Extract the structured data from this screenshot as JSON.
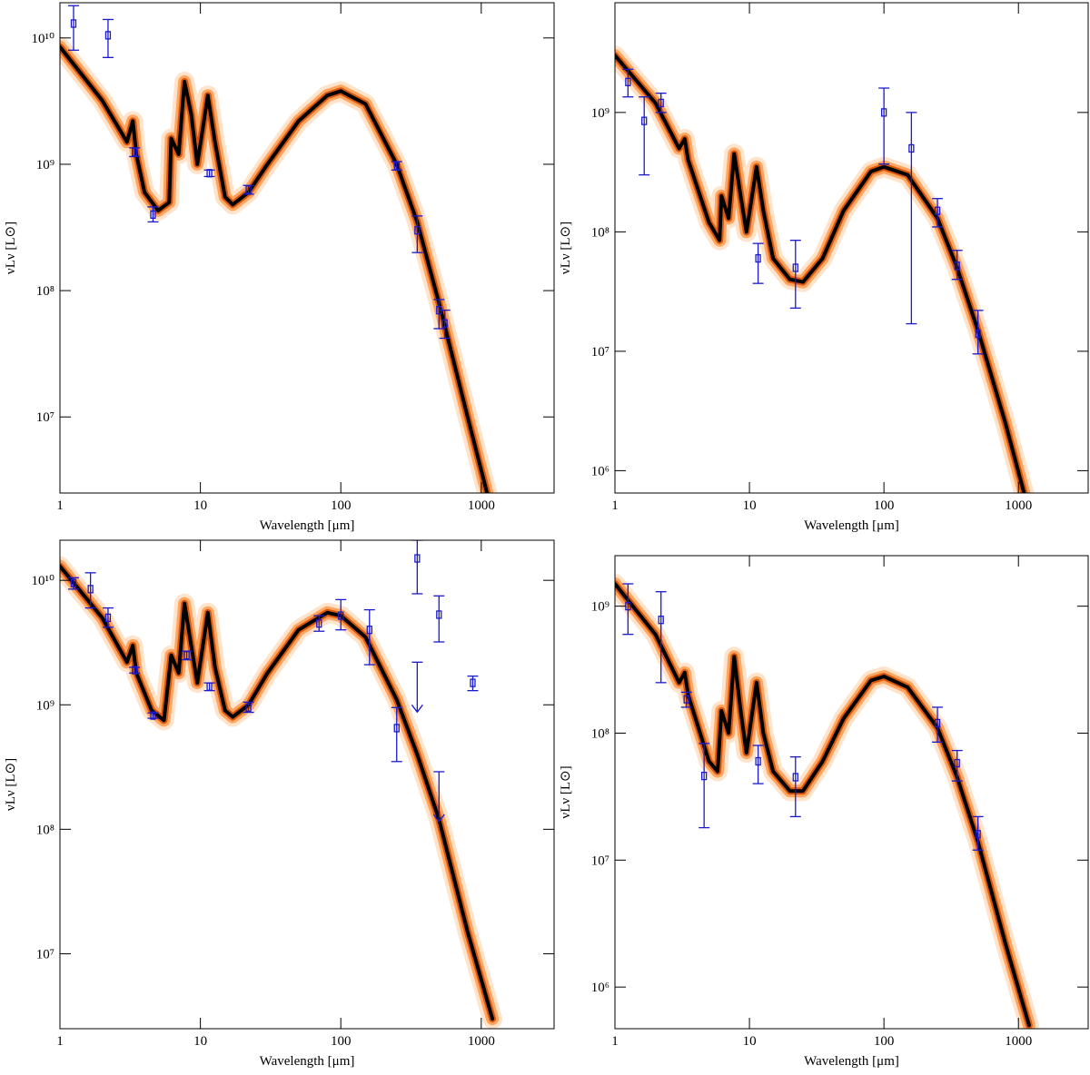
{
  "chart_data": [
    {
      "type": "line",
      "xlabel": "Wavelength [μm]",
      "ylabel": "νLν [L⊙]",
      "xscale": "log",
      "yscale": "log",
      "xlim": [
        1,
        3300
      ],
      "ylim": [
        2500000,
        19000000000
      ],
      "xticks": [
        1,
        10,
        100,
        1000
      ],
      "yticks": [
        {
          "value": 10000000,
          "label": "10⁷"
        },
        {
          "value": 100000000,
          "label": "10⁸"
        },
        {
          "value": 1000000000,
          "label": "10⁹"
        },
        {
          "value": 10000000000,
          "label": "10¹⁰"
        }
      ],
      "x": [
        1,
        2,
        3,
        3.3,
        3.5,
        4,
        5,
        6,
        6.2,
        7,
        7.7,
        8.6,
        9.5,
        11.3,
        12.7,
        15,
        17,
        22,
        30,
        50,
        80,
        100,
        150,
        250,
        350,
        500,
        800,
        1100
      ],
      "values": [
        8500000000,
        3200000000,
        1500000000,
        2200000000,
        1200000000,
        600000000,
        430000000,
        500000000,
        1600000000,
        1200000000,
        4500000000,
        2500000000,
        1000000000,
        3500000000,
        1500000000,
        550000000,
        480000000,
        600000000,
        1000000000,
        2200000000,
        3500000000,
        3800000000,
        3000000000,
        1000000000,
        350000000,
        80000000,
        10000000,
        2500000
      ],
      "color": "#d24a00",
      "points": {
        "color": "#1a1acc",
        "x": [
          1.25,
          2.2,
          3.4,
          4.6,
          11.6,
          22,
          250,
          350,
          500,
          550
        ],
        "values": [
          13000000000,
          10500000000,
          1250000000,
          400000000,
          850000000,
          630000000,
          970000000,
          300000000,
          70000000,
          55000000
        ],
        "low": [
          8000000000,
          7000000000,
          1150000000,
          350000000,
          800000000,
          580000000,
          900000000,
          200000000,
          50000000,
          42000000
        ],
        "high": [
          18000000000,
          14000000000,
          1350000000,
          460000000,
          900000000,
          680000000,
          1050000000,
          390000000,
          85000000,
          70000000
        ]
      }
    },
    {
      "type": "line",
      "xlabel": "Wavelength [μm]",
      "ylabel": "νLν [L⊙]",
      "xscale": "log",
      "yscale": "log",
      "xlim": [
        1,
        3300
      ],
      "ylim": [
        650000,
        8300000000
      ],
      "xticks": [
        1,
        10,
        100,
        1000
      ],
      "yticks": [
        {
          "value": 1000000,
          "label": "10⁶"
        },
        {
          "value": 10000000,
          "label": "10⁷"
        },
        {
          "value": 100000000,
          "label": "10⁸"
        },
        {
          "value": 1000000000,
          "label": "10⁹"
        }
      ],
      "x": [
        1,
        2,
        3,
        3.3,
        3.5,
        5,
        6,
        6.2,
        7,
        7.7,
        8.6,
        9.5,
        11.3,
        12.7,
        15,
        20,
        25,
        35,
        50,
        80,
        100,
        150,
        250,
        350,
        500,
        800,
        1100
      ],
      "values": [
        3000000000,
        1200000000,
        500000000,
        600000000,
        400000000,
        120000000,
        85000000,
        200000000,
        130000000,
        450000000,
        200000000,
        100000000,
        350000000,
        150000000,
        60000000,
        40000000,
        38000000,
        60000000,
        150000000,
        320000000,
        350000000,
        300000000,
        130000000,
        50000000,
        15000000,
        2500000,
        650000
      ],
      "color": "#d24a00",
      "points": {
        "color": "#1a1acc",
        "x": [
          1.25,
          1.65,
          2.2,
          11.6,
          22,
          100,
          160,
          250,
          350,
          500
        ],
        "values": [
          1800000000,
          850000000,
          1200000000,
          60000000,
          50000000,
          1000000000,
          500000000,
          150000000,
          52000000,
          14000000
        ],
        "low": [
          1350000000,
          300000000,
          1000000000,
          37000000,
          23000000,
          370000000,
          17000000,
          110000000,
          40000000,
          9500000
        ],
        "high": [
          2300000000,
          1350000000,
          1450000000,
          80000000,
          85000000,
          1600000000,
          1000000000,
          190000000,
          70000000,
          22000000
        ]
      }
    },
    {
      "type": "line",
      "xlabel": "Wavelength [μm]",
      "ylabel": "νLν [L⊙]",
      "xscale": "log",
      "yscale": "log",
      "xlim": [
        1,
        3300
      ],
      "ylim": [
        2500000,
        21000000000
      ],
      "xticks": [
        1,
        10,
        100,
        1000
      ],
      "yticks": [
        {
          "value": 10000000,
          "label": "10⁷"
        },
        {
          "value": 100000000,
          "label": "10⁸"
        },
        {
          "value": 1000000000,
          "label": "10⁹"
        },
        {
          "value": 10000000000,
          "label": "10¹⁰"
        }
      ],
      "x": [
        1,
        2,
        3,
        3.3,
        3.5,
        4.5,
        5.5,
        6.2,
        7,
        7.7,
        8.6,
        9.5,
        11.3,
        12.7,
        15,
        17,
        22,
        30,
        50,
        80,
        100,
        150,
        250,
        350,
        500,
        800,
        1200
      ],
      "values": [
        13000000000,
        5000000000,
        2200000000,
        3000000000,
        1800000000,
        900000000,
        750000000,
        2500000000,
        1800000000,
        6500000000,
        3000000000,
        1500000000,
        5500000000,
        2000000000,
        900000000,
        800000000,
        1000000000,
        1800000000,
        4000000000,
        5500000000,
        5200000000,
        3500000000,
        1100000000,
        400000000,
        120000000,
        15000000,
        3000000
      ],
      "color": "#d24a00",
      "points": {
        "color": "#1a1acc",
        "x": [
          1.25,
          1.65,
          2.2,
          3.4,
          4.6,
          8,
          11.6,
          22,
          70,
          100,
          160,
          250,
          350,
          500,
          870
        ],
        "values": [
          9500000000,
          8500000000,
          5000000000,
          1900000000,
          820000000,
          2500000000,
          1400000000,
          950000000,
          4500000000,
          5200000000,
          4000000000,
          650000000,
          15000000000,
          5300000000,
          1500000000
        ],
        "low": [
          8500000000,
          6000000000,
          4200000000,
          1800000000,
          780000000,
          2300000000,
          1300000000,
          870000000,
          3900000000,
          4000000000,
          2100000000,
          350000000,
          7800000000,
          3200000000,
          1300000000
        ],
        "high": [
          10500000000,
          11500000000,
          6000000000,
          2000000000,
          860000000,
          2700000000,
          1500000000,
          1050000000,
          5200000000,
          7000000000,
          5800000000,
          950000000,
          21000000000,
          7500000000,
          1700000000
        ]
      },
      "upper_limits": {
        "x": [
          350,
          500
        ],
        "values": [
          2200000000,
          290000000
        ]
      }
    },
    {
      "type": "line",
      "xlabel": "Wavelength [μm]",
      "ylabel": "νLν [L⊙]",
      "xscale": "log",
      "yscale": "log",
      "xlim": [
        1,
        3300
      ],
      "ylim": [
        470000,
        2500000000
      ],
      "xticks": [
        1,
        10,
        100,
        1000
      ],
      "yticks": [
        {
          "value": 1000000,
          "label": "10⁶"
        },
        {
          "value": 10000000,
          "label": "10⁷"
        },
        {
          "value": 100000000,
          "label": "10⁸"
        },
        {
          "value": 1000000000,
          "label": "10⁹"
        }
      ],
      "x": [
        1,
        2,
        3,
        3.3,
        3.5,
        5,
        5.8,
        6.2,
        7,
        7.7,
        8.6,
        9.5,
        11.3,
        12.7,
        15,
        20,
        25,
        35,
        50,
        80,
        100,
        150,
        250,
        350,
        500,
        800,
        1200
      ],
      "values": [
        1500000000,
        600000000,
        250000000,
        300000000,
        200000000,
        60000000,
        50000000,
        150000000,
        100000000,
        400000000,
        150000000,
        70000000,
        250000000,
        100000000,
        50000000,
        35000000,
        35000000,
        60000000,
        130000000,
        260000000,
        280000000,
        230000000,
        110000000,
        45000000,
        14000000,
        2200000,
        500000
      ],
      "color": "#d24a00",
      "points": {
        "color": "#1a1acc",
        "x": [
          1.25,
          2.2,
          3.4,
          4.6,
          11.6,
          22,
          250,
          350,
          500
        ],
        "values": [
          1000000000,
          780000000,
          185000000,
          46000000,
          60000000,
          45000000,
          120000000,
          58000000,
          16000000
        ],
        "low": [
          600000000,
          250000000,
          160000000,
          18000000,
          40000000,
          22000000,
          85000000,
          42000000,
          12000000
        ],
        "high": [
          1500000000,
          1300000000,
          210000000,
          83000000,
          80000000,
          65000000,
          160000000,
          73000000,
          22000000
        ]
      }
    }
  ]
}
